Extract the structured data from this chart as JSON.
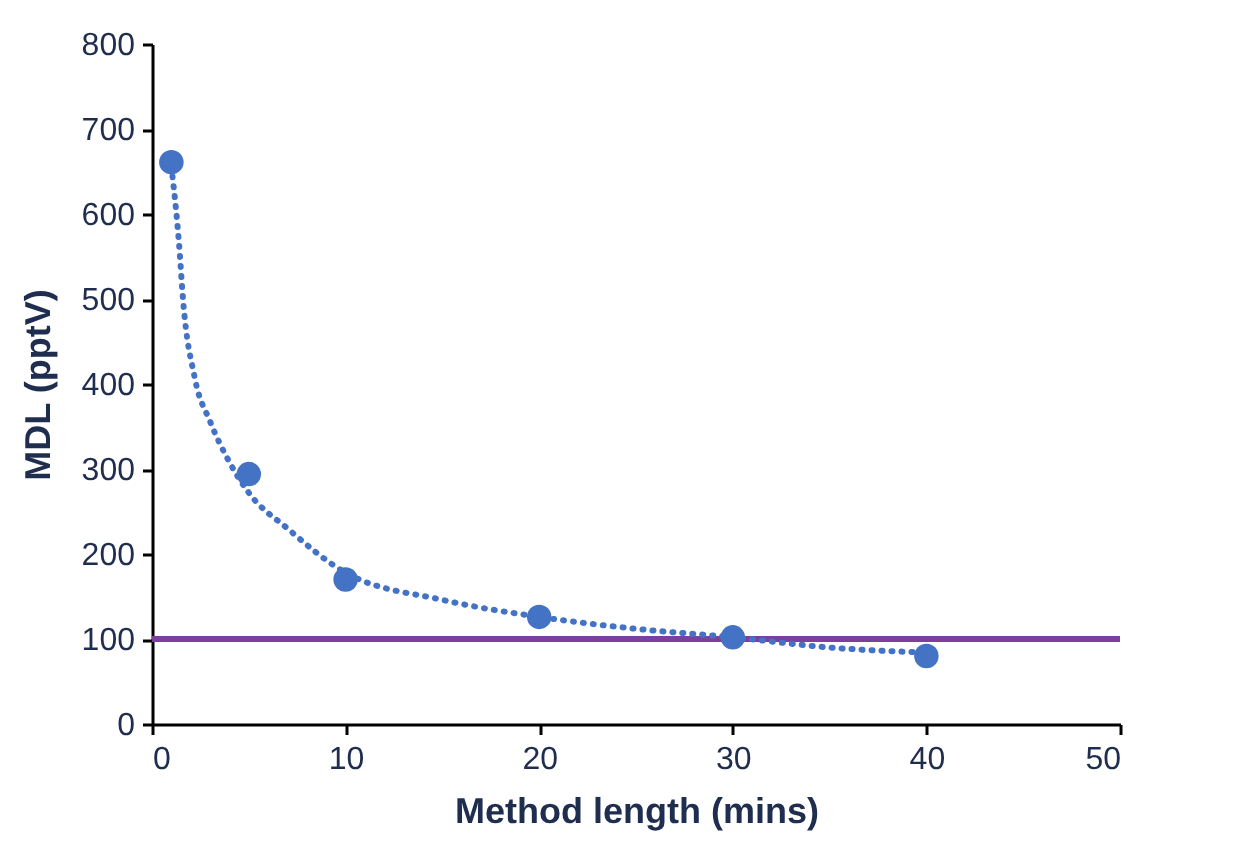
{
  "chart_data": {
    "type": "scatter",
    "xlabel": "Method length (mins)",
    "ylabel": "MDL (pptV)",
    "xlim": [
      0,
      50
    ],
    "xticks": [
      0,
      10,
      20,
      30,
      40,
      50
    ],
    "ylim": [
      0,
      800
    ],
    "yticks": [
      0,
      100,
      200,
      300,
      400,
      500,
      600,
      700,
      800
    ],
    "grid": false,
    "marker": "circle",
    "x": [
      1,
      5,
      10,
      20,
      30,
      40
    ],
    "series": [
      {
        "color": "#4472c4",
        "values": [
          661,
          294,
          170,
          126,
          102,
          80
        ]
      },
      {
        "type": "line",
        "color": "#4472c4",
        "line_style": "dotted",
        "marker": "none",
        "x": [
          1,
          1.4,
          1.6,
          2.2,
          3,
          4,
          5,
          7,
          10,
          15,
          20,
          25,
          30,
          35,
          40
        ],
        "values": [
          656,
          564,
          500,
          408,
          356,
          308,
          272,
          230,
          178,
          146,
          126,
          112,
          102,
          90,
          84
        ]
      }
    ],
    "ref_lines": [
      {
        "axis": "y",
        "value": 100,
        "color": "#7b3f9e",
        "line_style": "solid"
      }
    ]
  }
}
